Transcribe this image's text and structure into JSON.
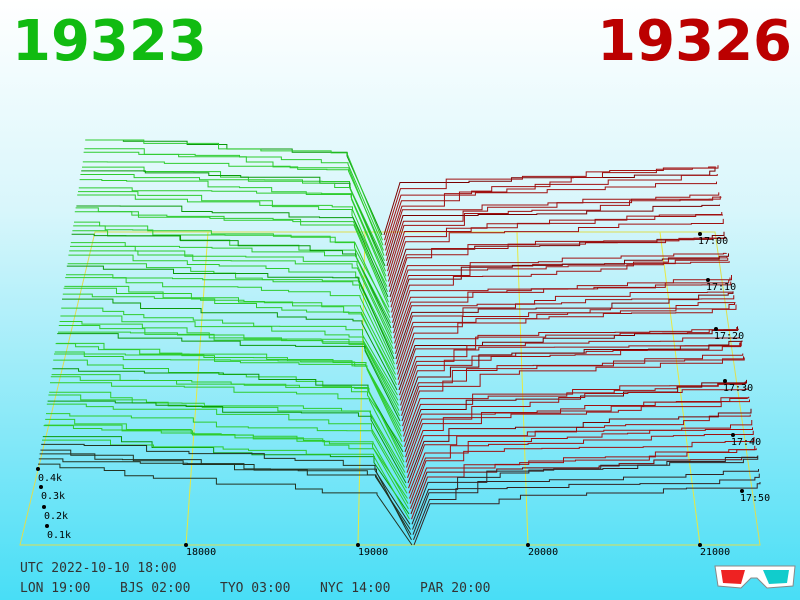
{
  "header": {
    "bid": "19323",
    "ask": "19326"
  },
  "price_axis": [
    "18000",
    "19000",
    "20000",
    "21000"
  ],
  "depth_axis": [
    "0.1k",
    "0.2k",
    "0.3k",
    "0.4k"
  ],
  "time_axis": [
    "17:00",
    "17:10",
    "17:20",
    "17:30",
    "17:40",
    "17:50"
  ],
  "footer": {
    "utc": "UTC 2022-10-10 18:00",
    "clocks": [
      "LON 19:00",
      "BJS 02:00",
      "TYO 03:00",
      "NYC 14:00",
      "PAR 20:00"
    ]
  }
}
